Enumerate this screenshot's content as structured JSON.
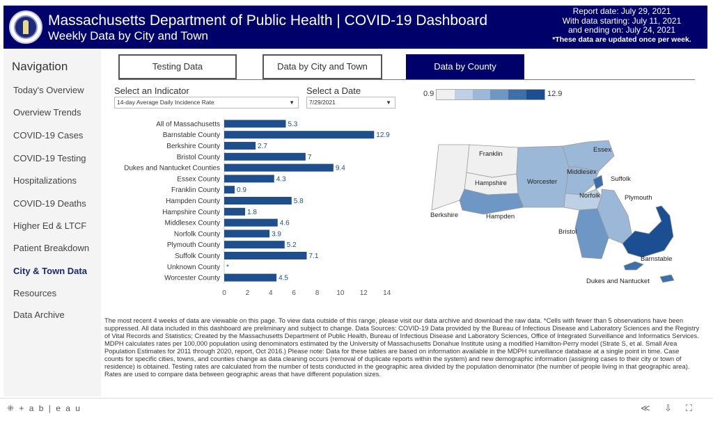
{
  "header": {
    "title": "Massachusetts Department of Public Health  |  COVID-19 Dashboard",
    "subtitle": "Weekly Data by City and Town",
    "report_date": "Report date: July 29, 2021",
    "data_start": "With data starting: July 11, 2021",
    "data_end": "and ending on: July 24, 2021",
    "update_note": "*These data are updated once per week."
  },
  "sidebar": {
    "title": "Navigation",
    "items": [
      {
        "label": "Today's Overview"
      },
      {
        "label": "Overview Trends"
      },
      {
        "label": "COVID-19 Cases"
      },
      {
        "label": "COVID-19 Testing"
      },
      {
        "label": "Hospitalizations"
      },
      {
        "label": "COVID-19 Deaths"
      },
      {
        "label": "Higher Ed & LTCF"
      },
      {
        "label": "Patient Breakdown"
      },
      {
        "label": "City & Town Data"
      },
      {
        "label": "Resources"
      },
      {
        "label": "Data Archive"
      }
    ],
    "active_index": 8
  },
  "tabs": [
    {
      "label": "Testing Data"
    },
    {
      "label": "Data by City and Town"
    },
    {
      "label": "Data by County"
    }
  ],
  "active_tab": 2,
  "indicator": {
    "label": "Select an Indicator",
    "value": "14-day Average Daily Incidence Rate"
  },
  "date_select": {
    "label": "Select a Date",
    "value": "7/29/2021"
  },
  "legend": {
    "min": "0.9",
    "max": "12.9",
    "colors": [
      "#f0f0f0",
      "#bdd0e4",
      "#9cb8d8",
      "#6f97c5",
      "#3f6fa9",
      "#1b4f91"
    ]
  },
  "colors": {
    "header_bg": "#00006b",
    "bar": "#1f4e8c",
    "value_label": "#1f4e8c"
  },
  "chart_data": {
    "type": "bar",
    "orientation": "horizontal",
    "categories": [
      "All of Massachusetts",
      "Barnstable County",
      "Berkshire County",
      "Bristol County",
      "Dukes and Nantucket Counties",
      "Essex County",
      "Franklin County",
      "Hampden County",
      "Hampshire County",
      "Middlesex County",
      "Norfolk County",
      "Plymouth County",
      "Suffolk County",
      "Unknown County",
      "Worcester County"
    ],
    "values": [
      5.3,
      12.9,
      2.7,
      7,
      9.4,
      4.3,
      0.9,
      5.8,
      1.8,
      4.6,
      3.9,
      5.2,
      7.1,
      null,
      4.5
    ],
    "value_labels": [
      "5.3",
      "12.9",
      "2.7",
      "7",
      "9.4",
      "4.3",
      "0.9",
      "5.8",
      "1.8",
      "4.6",
      "3.9",
      "5.2",
      "7.1",
      "*",
      "4.5"
    ],
    "xticks": [
      0,
      2,
      4,
      6,
      8,
      10,
      12,
      14
    ],
    "xlim": [
      0,
      14.5
    ],
    "grid": false
  },
  "map": {
    "labels": [
      {
        "name": "Franklin"
      },
      {
        "name": "Essex"
      },
      {
        "name": "Middlesex"
      },
      {
        "name": "Hampshire"
      },
      {
        "name": "Worcester"
      },
      {
        "name": "Suffolk"
      },
      {
        "name": "Norfolk"
      },
      {
        "name": "Plymouth"
      },
      {
        "name": "Berkshire"
      },
      {
        "name": "Hampden"
      },
      {
        "name": "Bristol"
      },
      {
        "name": "Barnstable"
      },
      {
        "name": "Dukes and Nantucket"
      }
    ]
  },
  "footnote": "The most recent 4 weeks of data are viewable on this page. To view data outside of this range, please visit our data archive and download the raw data. *Cells with fewer than 5 observations have been suppressed. All data included in this dashboard are preliminary and subject to change. Data Sources: COVID-19 Data provided by the Bureau of Infectious Disease and Laboratory Sciences and the Registry of Vital Records and Statistics; Created by the Massachusetts Department of Public Health, Bureau of Infectious Disease and Laboratory Sciences, Office of Integrated Surveillance and Informatics Services. MDPH calculates rates per 100,000 population using denominators estimated by the University of Massachusetts Donahue Institute using a modified Hamilton-Perry model (Strate S, et al. Small Area Population Estimates for 2011 through 2020, report, Oct 2016.) Please note: Data for these tables are based on information available in the MDPH surveillance database at a single point in time. Case counts for specific cities, towns, and counties change as data cleaning occurs (removal of duplicate reports within the system) and new demographic information (assigning cases to their city or town of residence) is obtained. Testing rates are calculated from the number of tests conducted in the geographic area divided by the population denominator (the number of people living in that geographic area). Rates are used to compare data between geographic areas that have different population sizes.",
  "footer": {
    "logo": "+ a b | e a u",
    "icons": [
      "share-icon",
      "download-icon",
      "fullscreen-icon"
    ]
  }
}
